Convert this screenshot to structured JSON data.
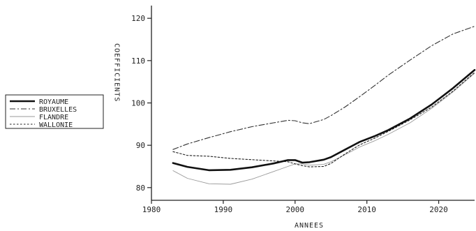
{
  "chart_data": {
    "type": "line",
    "title": "",
    "xlabel": "ANNEES",
    "ylabel": "COEFFICIENTS",
    "xlim": [
      1980,
      2025
    ],
    "ylim": [
      77,
      123
    ],
    "xticks": [
      1980,
      1990,
      2000,
      2010,
      2020
    ],
    "yticks": [
      80,
      90,
      100,
      110,
      120
    ],
    "legend_position": "left",
    "grid": false,
    "x": [
      1983,
      1985,
      1988,
      1991,
      1994,
      1997,
      1999,
      2000,
      2001,
      2002,
      2004,
      2005,
      2007,
      2009,
      2011,
      2013,
      2016,
      2019,
      2022,
      2025
    ],
    "series": [
      {
        "name": "ROYAUME",
        "style": "solid-bold",
        "color": "#111111",
        "values": [
          85.8,
          84.9,
          84.1,
          84.2,
          84.8,
          85.7,
          86.5,
          86.5,
          85.9,
          86.0,
          86.6,
          87.2,
          89.0,
          90.8,
          92.1,
          93.6,
          96.3,
          99.6,
          103.5,
          107.8
        ]
      },
      {
        "name": "BRUXELLES",
        "style": "dashdot",
        "color": "#333333",
        "values": [
          89.0,
          90.3,
          91.8,
          93.2,
          94.4,
          95.3,
          95.9,
          95.8,
          95.3,
          95.1,
          96.1,
          97.0,
          99.1,
          101.5,
          104.0,
          106.6,
          110.1,
          113.5,
          116.3,
          118.1
        ]
      },
      {
        "name": "FLANDRE",
        "style": "thin",
        "color": "#9a9a9a",
        "values": [
          84.0,
          82.2,
          80.9,
          80.8,
          82.0,
          83.8,
          85.0,
          85.6,
          85.6,
          85.3,
          85.5,
          86.1,
          87.8,
          89.6,
          91.0,
          92.6,
          95.3,
          98.7,
          102.6,
          107.0
        ]
      },
      {
        "name": "WALLONIE",
        "style": "dotted",
        "color": "#222222",
        "values": [
          88.5,
          87.6,
          87.4,
          86.9,
          86.6,
          86.3,
          86.1,
          85.6,
          85.2,
          84.9,
          85.0,
          85.7,
          88.0,
          90.1,
          91.6,
          93.3,
          96.0,
          99.0,
          102.8,
          107.2
        ]
      }
    ]
  }
}
